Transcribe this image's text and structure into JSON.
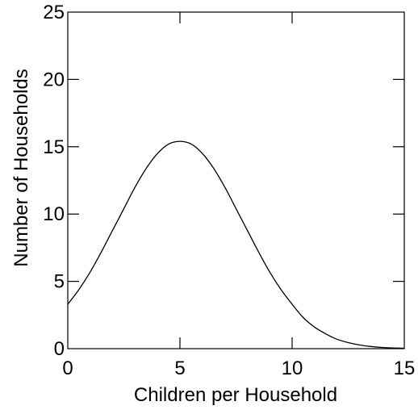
{
  "chart_data": {
    "type": "line",
    "title": "",
    "xlabel": "Children per Household",
    "ylabel": "Number of Households",
    "xlim": [
      0,
      15
    ],
    "ylim": [
      0,
      25
    ],
    "x_ticks": [
      0,
      5,
      10,
      15
    ],
    "y_ticks": [
      0,
      5,
      10,
      15,
      20,
      25
    ],
    "x_tick_labels": [
      "0",
      "5",
      "10",
      "15"
    ],
    "y_tick_labels": [
      "0",
      "5",
      "10",
      "15",
      "20",
      "25"
    ],
    "grid": false,
    "series": [
      {
        "x": [
          0,
          0.5,
          1,
          1.5,
          2,
          2.5,
          3,
          3.5,
          4,
          4.5,
          5,
          5.5,
          6,
          6.5,
          7,
          7.5,
          8,
          8.5,
          9,
          9.5,
          10,
          10.5,
          11,
          11.5,
          12,
          12.5,
          13,
          13.5,
          14,
          14.5,
          15
        ],
        "y": [
          3.3,
          4.4,
          5.7,
          7.2,
          8.8,
          10.4,
          12,
          13.4,
          14.5,
          15.2,
          15.4,
          15.2,
          14.5,
          13.4,
          12,
          10.4,
          8.8,
          7.2,
          5.7,
          4.4,
          3.3,
          2.3,
          1.6,
          1.1,
          0.7,
          0.45,
          0.28,
          0.16,
          0.09,
          0.05,
          0.03
        ],
        "color": "#000000"
      }
    ]
  }
}
